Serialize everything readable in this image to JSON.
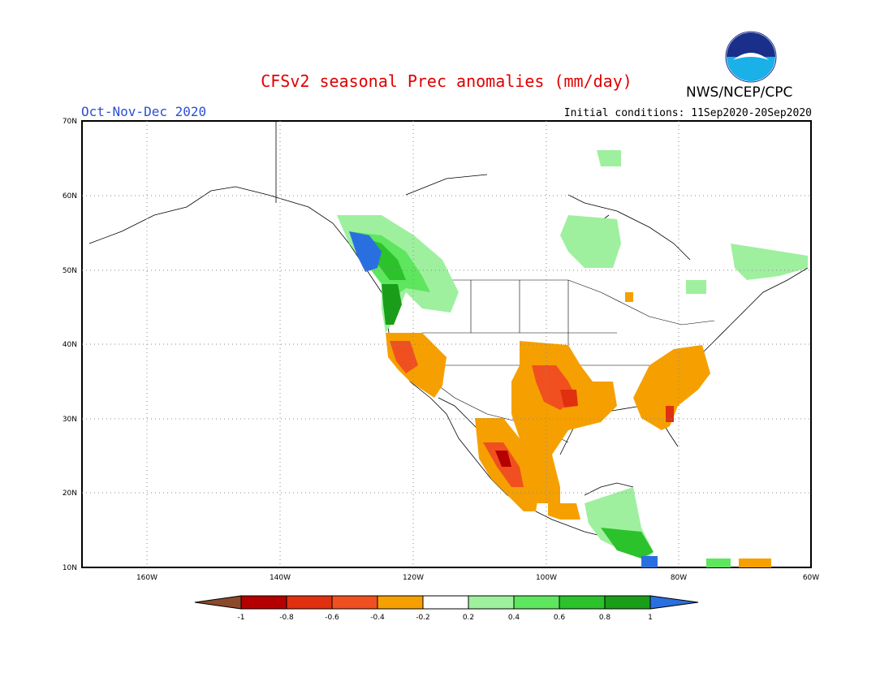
{
  "title": "CFSv2 seasonal Prec anomalies (mm/day)",
  "period": "Oct-Nov-Dec 2020",
  "initial_conditions": "Initial conditions: 11Sep2020-20Sep2020",
  "agency": "NWS/NCEP/CPC",
  "logo_text": "NOAA",
  "colors": {
    "title": "#e00000",
    "period": "#2a4fd6",
    "neg_1": "#8b4a2b",
    "neg_08": "#b40000",
    "neg_06": "#e03010",
    "neg_04": "#f05020",
    "neg_02": "#f5a000",
    "zero": "#ffffff",
    "pos_02": "#9ef09e",
    "pos_04": "#5ee65e",
    "pos_06": "#2cc22c",
    "pos_08": "#1a9e1a",
    "pos_1": "#2a6fe0"
  },
  "lat_labels": [
    "70N",
    "60N",
    "50N",
    "40N",
    "30N",
    "20N",
    "10N"
  ],
  "lon_labels": [
    "160W",
    "140W",
    "120W",
    "100W",
    "80W",
    "60W"
  ],
  "colorbar": {
    "ticks": [
      "-1",
      "-0.8",
      "-0.6",
      "-0.4",
      "-0.2",
      "0.2",
      "0.4",
      "0.6",
      "0.8",
      "1"
    ]
  },
  "chart_data": {
    "type": "heatmap",
    "title": "CFSv2 seasonal Prec anomalies (mm/day)",
    "variable": "precipitation anomaly",
    "units": "mm/day",
    "xlim": [
      "170W",
      "60W"
    ],
    "ylim": [
      "10N",
      "70N"
    ],
    "levels": [
      -1,
      -0.8,
      -0.6,
      -0.4,
      -0.2,
      0.2,
      0.4,
      0.6,
      0.8,
      1
    ],
    "grid": true,
    "regions": [
      {
        "name": "Pacific Northwest coast",
        "anomaly": 1.0
      },
      {
        "name": "British Columbia interior",
        "anomaly": 0.4
      },
      {
        "name": "Hudson Bay region",
        "anomaly": 0.2
      },
      {
        "name": "Eastern Canada",
        "anomaly": 0.2
      },
      {
        "name": "California",
        "anomaly": -0.6
      },
      {
        "name": "Southern Plains",
        "anomaly": -0.4
      },
      {
        "name": "Southeast US",
        "anomaly": -0.4
      },
      {
        "name": "Northwest Mexico",
        "anomaly": -0.6
      },
      {
        "name": "Central America",
        "anomaly": 0.6
      }
    ]
  }
}
